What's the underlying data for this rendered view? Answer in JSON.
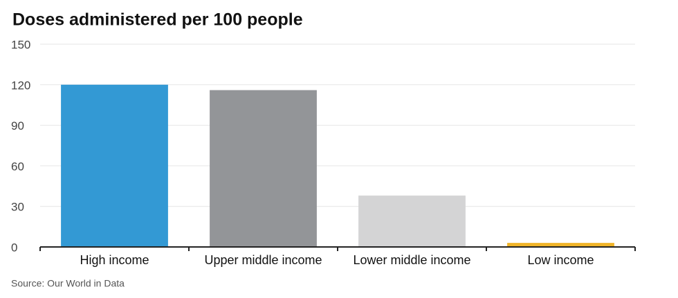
{
  "chart_data": {
    "type": "bar",
    "title": "Doses administered per 100 people",
    "categories": [
      "High income",
      "Upper middle income",
      "Lower middle income",
      "Low income"
    ],
    "values": [
      120,
      116,
      38,
      3
    ],
    "colors": [
      "#3399d4",
      "#939598",
      "#d4d4d5",
      "#f0b429"
    ],
    "ylim": [
      0,
      150
    ],
    "yticks": [
      0,
      30,
      60,
      90,
      120,
      150
    ],
    "grid": true,
    "source": "Source: Our World in Data"
  }
}
